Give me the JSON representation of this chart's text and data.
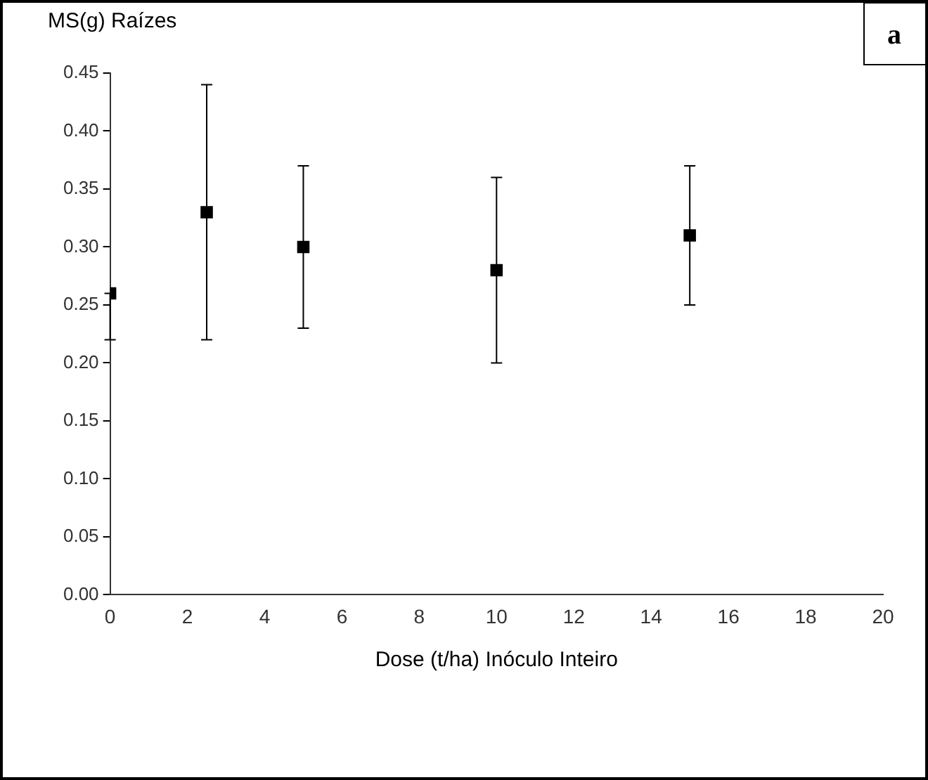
{
  "chart_data": {
    "type": "scatter",
    "xlabel": "Dose (t/ha) Inóculo Inteiro",
    "ylabel": "MS(g) Raízes",
    "annotations": [
      "a"
    ],
    "x": [
      0,
      2.5,
      5,
      10,
      15
    ],
    "values": [
      0.26,
      0.33,
      0.3,
      0.28,
      0.31
    ],
    "errors": [
      [
        0.22,
        0.26
      ],
      [
        0.22,
        0.44
      ],
      [
        0.23,
        0.37
      ],
      [
        0.2,
        0.36
      ],
      [
        0.25,
        0.37
      ]
    ],
    "color": "#000000",
    "marker": "square",
    "grid": false,
    "legend": false,
    "xlim": [
      0,
      20
    ],
    "xticks": [
      0,
      2,
      4,
      6,
      8,
      10,
      12,
      14,
      16,
      18,
      20
    ],
    "ylim": [
      0,
      0.45
    ],
    "yticks": [
      {
        "value": 0,
        "label": "0.00"
      },
      {
        "value": 0.05,
        "label": "0.05"
      },
      {
        "value": 0.1,
        "label": "0.10"
      },
      {
        "value": 0.15,
        "label": "0.15"
      },
      {
        "value": 0.2,
        "label": "0.20"
      },
      {
        "value": 0.25,
        "label": "0.25"
      },
      {
        "value": 0.3,
        "label": "0.30"
      },
      {
        "value": 0.35,
        "label": "0.35"
      },
      {
        "value": 0.4,
        "label": "0.40"
      },
      {
        "value": 0.45,
        "label": "0.45"
      }
    ]
  }
}
